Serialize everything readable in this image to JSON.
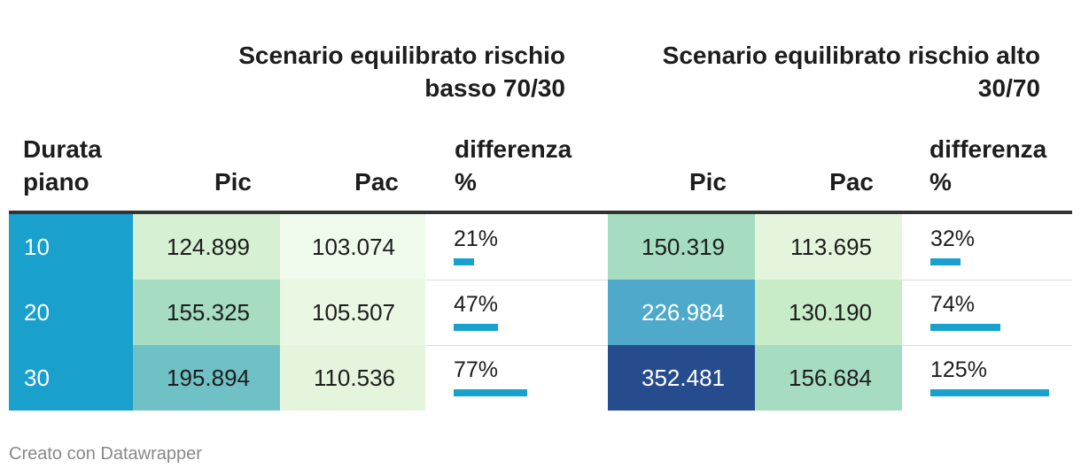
{
  "chart_data": {
    "type": "table",
    "groups": [
      {
        "title": "Scenario equilibrato rischio basso 70/30"
      },
      {
        "title": "Scenario equilibrato rischio alto 30/70"
      }
    ],
    "columns": {
      "durata": "Durata piano",
      "pic": "Pic",
      "pac": "Pac",
      "diff": "differenza %"
    },
    "rows": [
      {
        "durata": "10",
        "low_pic": "124.899",
        "low_pac": "103.074",
        "low_diff": "21%",
        "low_diff_value": 21,
        "high_pic": "150.319",
        "high_pac": "113.695",
        "high_diff": "32%",
        "high_diff_value": 32
      },
      {
        "durata": "20",
        "low_pic": "155.325",
        "low_pac": "105.507",
        "low_diff": "47%",
        "low_diff_value": 47,
        "high_pic": "226.984",
        "high_pac": "130.190",
        "high_diff": "74%",
        "high_diff_value": 74
      },
      {
        "durata": "30",
        "low_pic": "195.894",
        "low_pac": "110.536",
        "low_diff": "77%",
        "low_diff_value": 77,
        "high_pic": "352.481",
        "high_pac": "156.684",
        "high_diff": "125%",
        "high_diff_value": 125
      }
    ],
    "diff_max": 125,
    "colors": {
      "durata_bg": "#1aa0cd",
      "bar": "#18a1cd",
      "heat_scale": [
        "#effaec",
        "#e5f5dd",
        "#d5f0d2",
        "#c8ebc8",
        "#a6dcc1",
        "#70c1c6",
        "#4ea9cb",
        "#264c8e"
      ]
    },
    "cell_colors": {
      "low_pic": [
        "#d5f0d2",
        "#a6dcc1",
        "#70c1c6"
      ],
      "low_pac": [
        "#effaec",
        "#eaf7e3",
        "#e5f5dd"
      ],
      "high_pic": [
        "#a6dcc1",
        "#4ea9cb",
        "#264c8e"
      ],
      "high_pac": [
        "#e5f5dd",
        "#c8ebc8",
        "#a6dcc1"
      ]
    },
    "light_text_cells": [
      "high_pic:1",
      "high_pic:2"
    ]
  },
  "footer": "Creato con Datawrapper"
}
